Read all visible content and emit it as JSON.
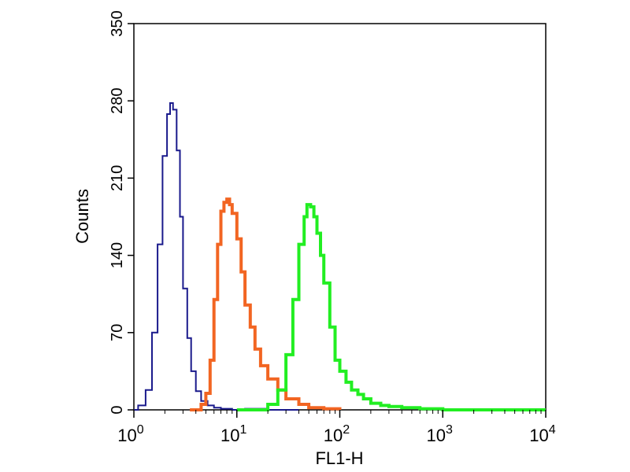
{
  "chart_data": {
    "type": "line",
    "xlabel": "FL1-H",
    "ylabel": "Counts",
    "x_scale": "log",
    "xlim": [
      1,
      10000
    ],
    "ylim": [
      0,
      350
    ],
    "x_ticks": [
      {
        "base": "10",
        "exp": "0",
        "value": 1
      },
      {
        "base": "10",
        "exp": "1",
        "value": 10
      },
      {
        "base": "10",
        "exp": "2",
        "value": 100
      },
      {
        "base": "10",
        "exp": "3",
        "value": 1000
      },
      {
        "base": "10",
        "exp": "4",
        "value": 10000
      }
    ],
    "y_ticks": [
      "0",
      "70",
      "140",
      "210",
      "280",
      "350"
    ],
    "grid": false,
    "series": [
      {
        "color": "#1a1a8c",
        "x": [
          1.0,
          1.1,
          1.3,
          1.5,
          1.7,
          1.9,
          2.1,
          2.25,
          2.4,
          2.6,
          2.8,
          3.0,
          3.3,
          3.6,
          4.0,
          4.5,
          5.2,
          6.0,
          7.0,
          9.0,
          12,
          20,
          40
        ],
        "y": [
          0,
          4,
          18,
          70,
          150,
          230,
          268,
          278,
          272,
          235,
          175,
          110,
          65,
          35,
          17,
          8,
          4,
          2,
          1,
          0,
          1,
          0,
          0
        ]
      },
      {
        "color": "#f26522",
        "x": [
          3.5,
          4.5,
          5.0,
          5.5,
          6.0,
          6.5,
          7.0,
          7.5,
          8.0,
          8.5,
          9.0,
          10.0,
          11,
          12,
          13.5,
          15,
          17,
          20,
          25,
          30,
          40,
          50,
          70,
          100
        ],
        "y": [
          0,
          5,
          15,
          45,
          100,
          150,
          180,
          188,
          191,
          186,
          178,
          155,
          125,
          95,
          75,
          55,
          40,
          28,
          18,
          10,
          5,
          2,
          1,
          0
        ]
      },
      {
        "color": "#22ee22",
        "x": [
          10,
          20,
          25,
          30,
          35,
          40,
          45,
          48,
          52,
          56,
          60,
          65,
          70,
          80,
          90,
          100,
          115,
          130,
          150,
          170,
          200,
          250,
          300,
          400,
          600,
          1000,
          10000
        ],
        "y": [
          0,
          5,
          18,
          50,
          100,
          150,
          175,
          186,
          184,
          175,
          160,
          140,
          115,
          75,
          45,
          35,
          25,
          18,
          14,
          10,
          6,
          4,
          3,
          2,
          1,
          0,
          0
        ]
      }
    ]
  }
}
